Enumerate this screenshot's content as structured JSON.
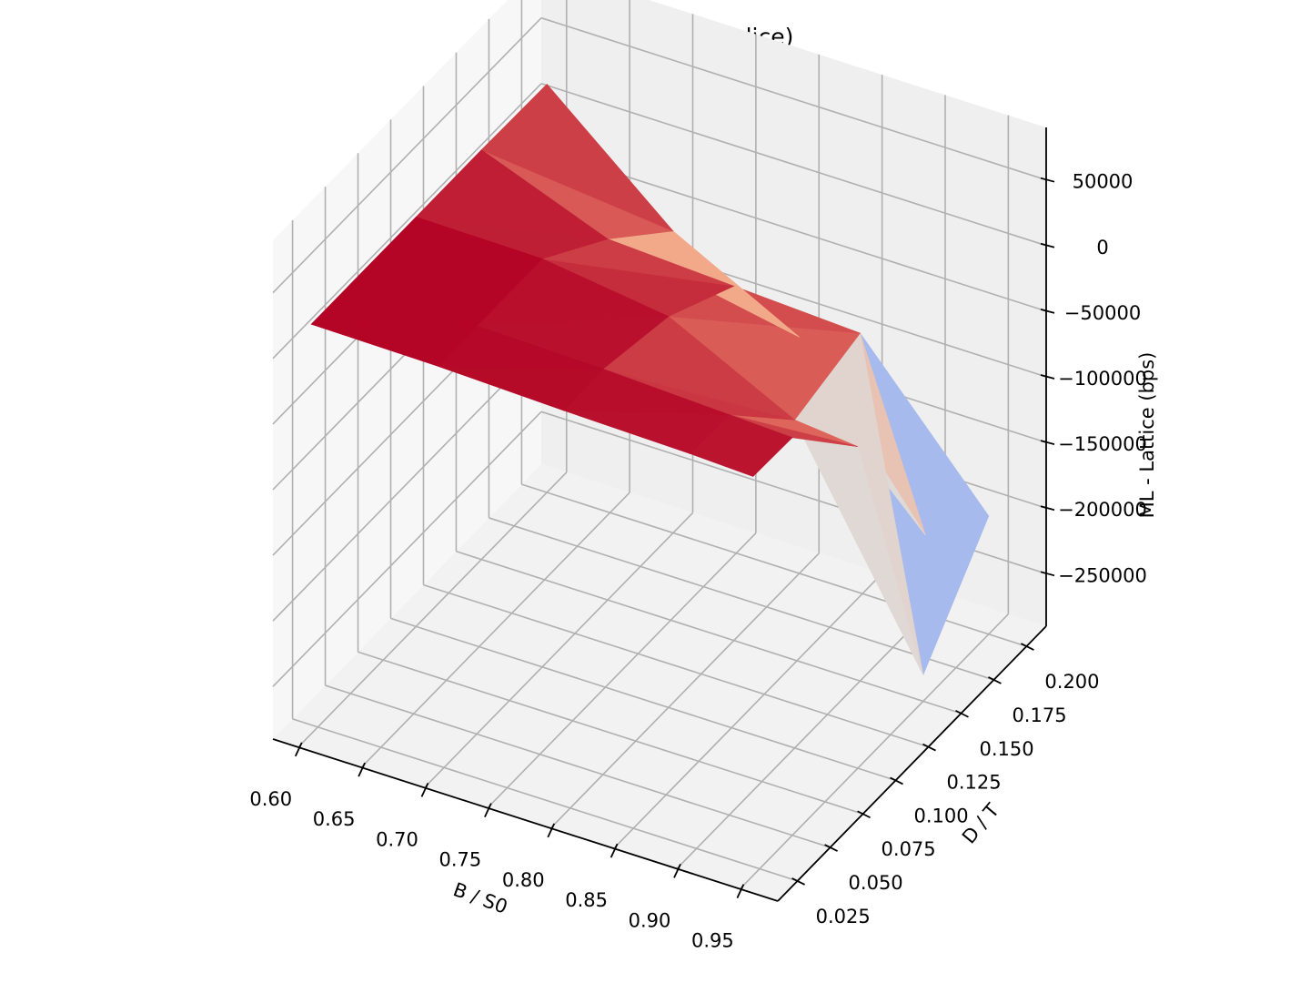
{
  "chart_data": {
    "type": "surface3d",
    "title": "Error surface (ATM slice)",
    "xlabel": "B / S0",
    "ylabel": "D / T",
    "zlabel": "ML - Lattice (bps)",
    "colormap": "coolwarm",
    "xlim": [
      0.58,
      0.98
    ],
    "ylim": [
      0.01,
      0.215
    ],
    "zlim": [
      -290000,
      90000
    ],
    "x_ticks": [
      0.6,
      0.65,
      0.7,
      0.75,
      0.8,
      0.85,
      0.9,
      0.95
    ],
    "y_ticks": [
      0.025,
      0.05,
      0.075,
      0.1,
      0.125,
      0.15,
      0.175,
      0.2
    ],
    "z_ticks": [
      50000,
      0,
      -50000,
      -100000,
      -150000,
      -200000,
      -250000
    ],
    "x_tick_labels": [
      "0.60",
      "0.65",
      "0.70",
      "0.75",
      "0.80",
      "0.85",
      "0.90",
      "0.95"
    ],
    "y_tick_labels": [
      "0.025",
      "0.050",
      "0.075",
      "0.100",
      "0.125",
      "0.150",
      "0.175",
      "0.200"
    ],
    "z_tick_labels": [
      "50000",
      "0",
      "−50000",
      "−100000",
      "−150000",
      "−200000",
      "−250000"
    ],
    "x": [
      0.6,
      0.7,
      0.8,
      0.9,
      0.95
    ],
    "y": [
      0.02,
      0.05,
      0.1,
      0.15,
      0.2
    ],
    "z": [
      [
        22000,
        21000,
        18000,
        16000,
        14000
      ],
      [
        22000,
        21000,
        19000,
        15000,
        13000
      ],
      [
        22000,
        21000,
        8000,
        -40000,
        -45000
      ],
      [
        22000,
        -15000,
        -20000,
        -25000,
        -270000
      ],
      [
        21000,
        -60000,
        -110000,
        -230000,
        -200000
      ]
    ]
  }
}
